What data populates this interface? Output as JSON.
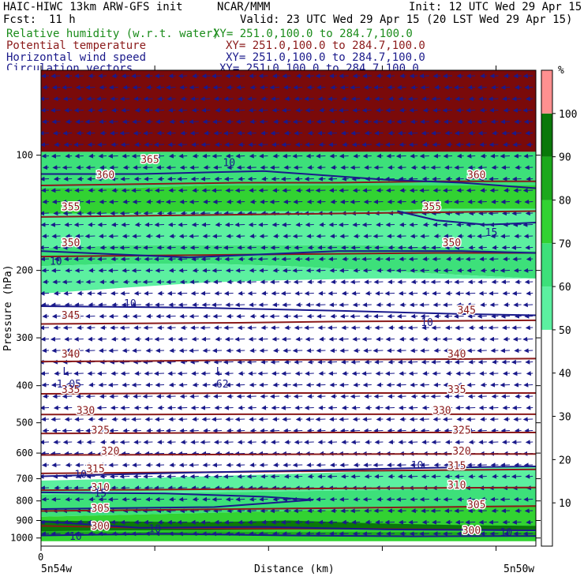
{
  "header": {
    "model": "HAIC-HIWC 13km ARW-GFS init",
    "org": "NCAR/MMM",
    "init": "Init: 12 UTC Wed 29 Apr 15",
    "fcst_label": "Fcst:",
    "fcst_value": "11 h",
    "valid": "Valid: 23 UTC Wed 29 Apr 15 (20 LST Wed 29 Apr 15)",
    "fields": [
      {
        "label": "Relative humidity (w.r.t. water)",
        "xy": "XY= 251.0,100.0 to 284.7,100.0",
        "color": "#1a8c1a"
      },
      {
        "label": "Potential temperature",
        "xy": "XY= 251.0,100.0 to 284.7,100.0",
        "color": "#8b1a1a"
      },
      {
        "label": "Horizontal wind speed",
        "xy": "XY= 251.0,100.0 to 284.7,100.0",
        "color": "#1a1a8b"
      },
      {
        "label": "Circulation vectors",
        "xy": "XY= 251.0,100.0 to 284.7,100.0",
        "color": "#1a1a8b"
      }
    ]
  },
  "chart_data": {
    "type": "heatmap",
    "ylabel": "Pressure (hPa)",
    "xlabel": "Distance (km)",
    "y_ticks": [
      100,
      200,
      300,
      400,
      500,
      600,
      700,
      800,
      900,
      1000
    ],
    "ylim": [
      1050,
      60
    ],
    "y_scale": "log",
    "x_left_label": "5n54w",
    "x_right_label": "5n50w",
    "x_zero_label": "0",
    "colorbar": {
      "unit": "%",
      "levels": [
        10,
        20,
        30,
        40,
        50,
        60,
        70,
        80,
        90,
        100
      ],
      "colors": [
        "#ffffff",
        "#ffffff",
        "#ffffff",
        "#ffffff",
        "#ffffff",
        "#5cf0a0",
        "#3de07a",
        "#32d232",
        "#1ca81c",
        "#0a780a",
        "#ff9090"
      ]
    },
    "theta_contours": [
      {
        "value": 300,
        "p": [
          930,
          940,
          945,
          945,
          950,
          955
        ]
      },
      {
        "value": 305,
        "p": [
          850,
          845,
          840,
          835,
          830,
          825
        ]
      },
      {
        "value": 310,
        "p": [
          750,
          748,
          745,
          742,
          740,
          738
        ]
      },
      {
        "value": 315,
        "p": [
          678,
          675,
          672,
          668,
          665,
          662
        ]
      },
      {
        "value": 320,
        "p": [
          607,
          606,
          605,
          604,
          603,
          603
        ]
      },
      {
        "value": 325,
        "p": [
          533,
          532,
          531,
          530,
          530,
          530
        ]
      },
      {
        "value": 330,
        "p": [
          476,
          476,
          475,
          475,
          475,
          475
        ]
      },
      {
        "value": 335,
        "p": [
          420,
          419,
          418,
          418,
          418,
          418
        ]
      },
      {
        "value": 340,
        "p": [
          346,
          345,
          343,
          342,
          341,
          340
        ]
      },
      {
        "value": 345,
        "p": [
          276,
          275,
          274,
          272,
          271,
          270
        ]
      },
      {
        "value": 350,
        "p": [
          184,
          183,
          182,
          181,
          180,
          180
        ]
      },
      {
        "value": 355,
        "p": [
          145,
          144,
          143,
          142,
          141,
          140
        ]
      },
      {
        "value": 360,
        "p": [
          120,
          119,
          118,
          118,
          117,
          117
        ]
      }
    ],
    "theta_labels": [
      {
        "text": "365",
        "x": 0.22,
        "p": 103
      },
      {
        "text": "360",
        "x": 0.13,
        "p": 113
      },
      {
        "text": "360",
        "x": 0.88,
        "p": 113
      },
      {
        "text": "355",
        "x": 0.06,
        "p": 137
      },
      {
        "text": "355",
        "x": 0.79,
        "p": 137
      },
      {
        "text": "350",
        "x": 0.06,
        "p": 170
      },
      {
        "text": "350",
        "x": 0.83,
        "p": 170
      },
      {
        "text": "345",
        "x": 0.06,
        "p": 263
      },
      {
        "text": "345",
        "x": 0.86,
        "p": 255
      },
      {
        "text": "340",
        "x": 0.06,
        "p": 332
      },
      {
        "text": "340",
        "x": 0.84,
        "p": 332
      },
      {
        "text": "335",
        "x": 0.06,
        "p": 411
      },
      {
        "text": "335",
        "x": 0.84,
        "p": 411
      },
      {
        "text": "330",
        "x": 0.09,
        "p": 466
      },
      {
        "text": "330",
        "x": 0.81,
        "p": 466
      },
      {
        "text": "325",
        "x": 0.12,
        "p": 525
      },
      {
        "text": "325",
        "x": 0.85,
        "p": 525
      },
      {
        "text": "320",
        "x": 0.14,
        "p": 595
      },
      {
        "text": "320",
        "x": 0.85,
        "p": 595
      },
      {
        "text": "315",
        "x": 0.11,
        "p": 662
      },
      {
        "text": "315",
        "x": 0.84,
        "p": 650
      },
      {
        "text": "310",
        "x": 0.12,
        "p": 740
      },
      {
        "text": "310",
        "x": 0.84,
        "p": 730
      },
      {
        "text": "305",
        "x": 0.12,
        "p": 840
      },
      {
        "text": "305",
        "x": 0.88,
        "p": 822
      },
      {
        "text": "300",
        "x": 0.12,
        "p": 935
      },
      {
        "text": "300",
        "x": 0.87,
        "p": 960
      }
    ],
    "speed_labels": [
      {
        "text": "10",
        "x": 0.38,
        "p": 105
      },
      {
        "text": "15",
        "x": 0.91,
        "p": 160
      },
      {
        "text": "10",
        "x": 0.03,
        "p": 190
      },
      {
        "text": "10",
        "x": 0.18,
        "p": 245
      },
      {
        "text": "10",
        "x": 0.78,
        "p": 275
      },
      {
        "text": "10",
        "x": 0.76,
        "p": 648
      },
      {
        "text": "10",
        "x": 0.08,
        "p": 685
      },
      {
        "text": "15",
        "x": 0.12,
        "p": 768
      },
      {
        "text": "10",
        "x": 0.23,
        "p": 950
      },
      {
        "text": "10",
        "x": 0.07,
        "p": 995
      },
      {
        "text": "10",
        "x": 0.94,
        "p": 970
      }
    ],
    "lows": [
      {
        "text": "L",
        "sub": "1.05",
        "x": 0.05,
        "p": 375
      },
      {
        "text": "L",
        "sub": "62",
        "x": 0.36,
        "p": 375
      }
    ],
    "grid": false
  }
}
